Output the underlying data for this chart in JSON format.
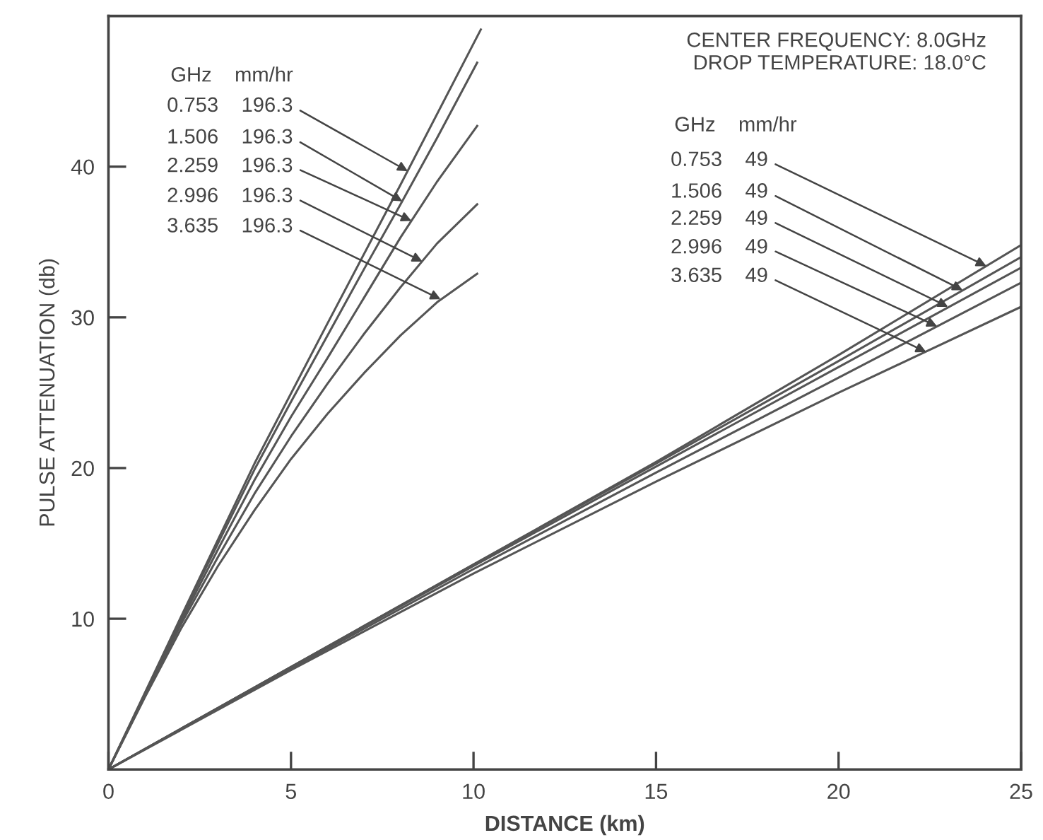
{
  "chart_data": {
    "type": "line",
    "xlabel": "DISTANCE (km)",
    "ylabel": "PULSE ATTENUATION (db)",
    "xlim": [
      0,
      25
    ],
    "ylim": [
      0,
      50
    ],
    "xticks": [
      0,
      5,
      10,
      15,
      20,
      25
    ],
    "yticks": [
      10,
      20,
      30,
      40
    ],
    "grid": false,
    "legend": false,
    "marker": "none",
    "line_style": "solid",
    "series": [
      {
        "color": "#555555",
        "x": [
          0,
          2,
          4,
          6,
          8,
          10.2
        ],
        "values": [
          0,
          10.2,
          20.3,
          29.6,
          38.8,
          49.1
        ]
      },
      {
        "color": "#555555",
        "x": [
          0,
          1,
          2,
          3,
          4,
          5,
          6,
          7,
          8,
          9,
          10.1
        ],
        "values": [
          0,
          5.0,
          10.1,
          15.0,
          19.9,
          24.4,
          28.8,
          33.2,
          37.5,
          41.9,
          46.9
        ]
      },
      {
        "color": "#555555",
        "x": [
          0,
          1,
          2,
          3,
          4,
          5,
          6,
          7,
          8,
          9,
          10.1
        ],
        "values": [
          0,
          5.0,
          9.9,
          14.6,
          19.2,
          23.4,
          27.3,
          31.3,
          35.3,
          39.0,
          42.7
        ]
      },
      {
        "color": "#555555",
        "x": [
          0,
          1,
          2,
          3,
          4,
          5,
          6,
          7,
          8,
          9,
          10.1
        ],
        "values": [
          0,
          4.9,
          9.7,
          14.1,
          18.3,
          22.1,
          25.6,
          28.9,
          32.0,
          34.9,
          37.5
        ]
      },
      {
        "color": "#555555",
        "x": [
          0,
          1,
          2,
          3,
          4,
          5,
          6,
          7,
          8,
          9,
          10.1
        ],
        "values": [
          0,
          4.8,
          9.4,
          13.5,
          17.2,
          20.6,
          23.6,
          26.3,
          28.8,
          31.0,
          32.9
        ]
      },
      {
        "color": "#555555",
        "x": [
          0,
          5,
          10,
          15,
          20,
          25
        ],
        "values": [
          0,
          6.8,
          13.6,
          20.4,
          27.5,
          34.8
        ]
      },
      {
        "color": "#555555",
        "x": [
          0,
          5,
          10,
          15,
          20,
          25
        ],
        "values": [
          0,
          6.8,
          13.6,
          20.3,
          27.1,
          34.0
        ]
      },
      {
        "color": "#555555",
        "x": [
          0,
          5,
          10,
          15,
          20,
          25
        ],
        "values": [
          0,
          6.8,
          13.5,
          20.1,
          26.7,
          33.3
        ]
      },
      {
        "color": "#555555",
        "x": [
          0,
          5,
          10,
          15,
          20,
          25
        ],
        "values": [
          0,
          6.7,
          13.3,
          19.7,
          26.0,
          32.3
        ]
      },
      {
        "color": "#555555",
        "x": [
          0,
          5,
          10,
          15,
          20,
          25
        ],
        "values": [
          0,
          6.6,
          13.0,
          19.1,
          25.0,
          30.7
        ]
      }
    ],
    "annotations": [
      "CENTER FREQUENCY: 8.0GHz",
      "DROP TEMPERATURE: 18.0°C",
      "GHz    mm/hr",
      {
        "text": "0.753    196.3",
        "x": 8.2,
        "y": 39.7
      },
      {
        "text": "1.506    196.3",
        "x": 8.05,
        "y": 37.7
      },
      {
        "text": "2.259    196.3",
        "x": 8.3,
        "y": 36.4
      },
      {
        "text": "2.996    196.3",
        "x": 8.6,
        "y": 33.7
      },
      {
        "text": "3.635    196.3",
        "x": 9.1,
        "y": 31.2
      },
      "GHz    mm/hr",
      {
        "text": "0.753    49",
        "x": 24.05,
        "y": 33.4
      },
      {
        "text": "1.506    49",
        "x": 23.4,
        "y": 31.8
      },
      {
        "text": "2.259    49",
        "x": 23.0,
        "y": 30.7
      },
      {
        "text": "2.996    49",
        "x": 22.7,
        "y": 29.4
      },
      {
        "text": "3.635    49",
        "x": 22.4,
        "y": 27.7
      }
    ]
  }
}
